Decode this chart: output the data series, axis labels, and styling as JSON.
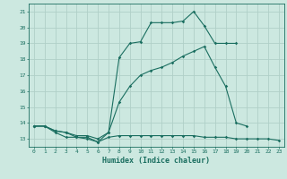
{
  "xlabel": "Humidex (Indice chaleur)",
  "bg_color": "#cce8e0",
  "grid_color": "#b0d0c8",
  "line_color": "#1a6e60",
  "line1_x": [
    0,
    1,
    2,
    3,
    4,
    5,
    6,
    7,
    8,
    9,
    10,
    11,
    12,
    13,
    14,
    15,
    16,
    17,
    18,
    19
  ],
  "line1_y": [
    13.8,
    13.8,
    13.5,
    13.4,
    13.1,
    13.1,
    12.8,
    13.4,
    18.1,
    19.0,
    19.1,
    20.3,
    20.3,
    20.3,
    20.4,
    21.0,
    20.1,
    19.0,
    19.0,
    19.0
  ],
  "line2_x": [
    0,
    1,
    2,
    3,
    4,
    5,
    6,
    7,
    8,
    9,
    10,
    11,
    12,
    13,
    14,
    15,
    16,
    17,
    18,
    19,
    20
  ],
  "line2_y": [
    13.8,
    13.8,
    13.5,
    13.4,
    13.2,
    13.2,
    13.0,
    13.4,
    15.3,
    16.3,
    17.0,
    17.3,
    17.5,
    17.8,
    18.2,
    18.5,
    18.8,
    17.5,
    16.3,
    14.0,
    13.8
  ],
  "line3_x": [
    0,
    1,
    2,
    3,
    4,
    5,
    6,
    7,
    8,
    9,
    10,
    11,
    12,
    13,
    14,
    15,
    16,
    17,
    18,
    19,
    20,
    21,
    22,
    23
  ],
  "line3_y": [
    13.8,
    13.8,
    13.4,
    13.1,
    13.1,
    13.0,
    12.8,
    13.1,
    13.2,
    13.2,
    13.2,
    13.2,
    13.2,
    13.2,
    13.2,
    13.2,
    13.1,
    13.1,
    13.1,
    13.0,
    13.0,
    13.0,
    13.0,
    12.9
  ],
  "xlim": [
    -0.5,
    23.5
  ],
  "ylim": [
    12.5,
    21.5
  ],
  "yticks": [
    13,
    14,
    15,
    16,
    17,
    18,
    19,
    20,
    21
  ],
  "xticks": [
    0,
    1,
    2,
    3,
    4,
    5,
    6,
    7,
    8,
    9,
    10,
    11,
    12,
    13,
    14,
    15,
    16,
    17,
    18,
    19,
    20,
    21,
    22,
    23
  ]
}
